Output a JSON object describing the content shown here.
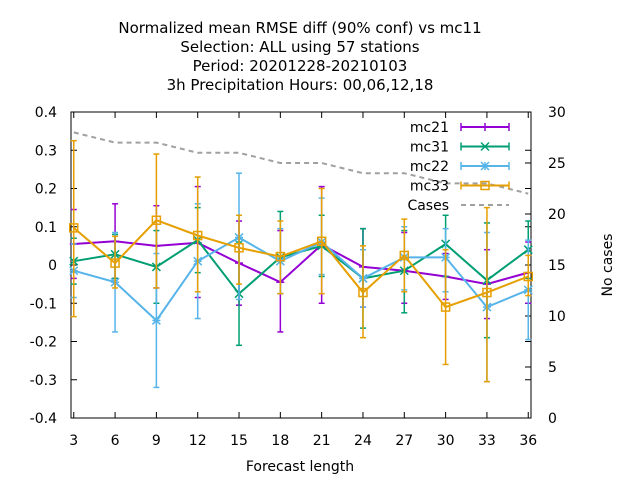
{
  "chart_data": {
    "type": "line",
    "title_lines": [
      "Normalized mean RMSE diff (90% conf) vs mc11",
      "Selection: ALL using    57 stations",
      "Period: 20201228-20210103",
      "3h Precipitation   Hours:  00,06,12,18"
    ],
    "xlabel": "Forecast length",
    "y2label": "No cases",
    "x": [
      3,
      6,
      9,
      12,
      15,
      18,
      21,
      24,
      27,
      30,
      33,
      36
    ],
    "xlim": [
      2.8,
      36.2
    ],
    "ylim": [
      -0.4,
      0.4
    ],
    "y2lim": [
      0,
      30
    ],
    "yticks": [
      "0.4",
      "0.3",
      "0.2",
      "0.1",
      "0",
      "-0.1",
      "-0.2",
      "-0.3",
      "-0.4"
    ],
    "y2ticks": [
      "30",
      "25",
      "20",
      "15",
      "10",
      "5",
      "0"
    ],
    "xticks": [
      "3",
      "6",
      "9",
      "12",
      "15",
      "18",
      "21",
      "24",
      "27",
      "30",
      "33",
      "36"
    ],
    "series": [
      {
        "name": "mc21",
        "color": "#9400d3",
        "marker": "plus",
        "axis": "y",
        "values": [
          0.055,
          0.062,
          0.05,
          0.058,
          0.005,
          -0.045,
          0.053,
          -0.005,
          -0.015,
          -0.03,
          -0.05,
          -0.02
        ],
        "lower": [
          -0.035,
          -0.035,
          -0.06,
          -0.085,
          -0.105,
          -0.175,
          -0.1,
          -0.11,
          -0.1,
          -0.09,
          -0.14,
          -0.1
        ],
        "upper": [
          0.145,
          0.16,
          0.155,
          0.205,
          0.115,
          0.09,
          0.205,
          0.095,
          0.085,
          0.03,
          0.04,
          0.06
        ]
      },
      {
        "name": "mc31",
        "color": "#009e73",
        "marker": "cross",
        "axis": "y",
        "values": [
          0.01,
          0.028,
          -0.005,
          0.065,
          -0.075,
          0.02,
          0.05,
          -0.035,
          -0.015,
          0.055,
          -0.04,
          0.04
        ],
        "lower": [
          -0.05,
          -0.035,
          -0.1,
          -0.02,
          -0.21,
          -0.075,
          -0.03,
          -0.165,
          -0.125,
          -0.03,
          -0.19,
          -0.035
        ],
        "upper": [
          0.07,
          0.08,
          0.09,
          0.15,
          0.06,
          0.14,
          0.13,
          0.095,
          0.09,
          0.13,
          0.11,
          0.115
        ]
      },
      {
        "name": "mc22",
        "color": "#56b4e9",
        "marker": "star",
        "axis": "y",
        "values": [
          -0.015,
          -0.045,
          -0.145,
          0.01,
          0.072,
          0.01,
          0.06,
          -0.035,
          0.02,
          0.02,
          -0.11,
          -0.065
        ],
        "lower": [
          -0.085,
          -0.175,
          -0.32,
          -0.14,
          -0.09,
          -0.075,
          -0.025,
          -0.11,
          -0.065,
          -0.07,
          -0.305,
          -0.195
        ],
        "upper": [
          0.055,
          0.085,
          0.03,
          0.16,
          0.24,
          0.095,
          0.175,
          0.04,
          0.1,
          0.095,
          0.085,
          0.065
        ]
      },
      {
        "name": "mc33",
        "color": "#e69f00",
        "marker": "square",
        "axis": "y",
        "values": [
          0.097,
          0.005,
          0.117,
          0.077,
          0.045,
          0.022,
          0.062,
          -0.072,
          0.025,
          -0.11,
          -0.072,
          -0.03
        ],
        "lower": [
          -0.135,
          -0.06,
          -0.06,
          -0.07,
          -0.05,
          -0.075,
          -0.075,
          -0.19,
          -0.07,
          -0.26,
          -0.305,
          -0.08
        ],
        "upper": [
          0.325,
          0.075,
          0.29,
          0.23,
          0.13,
          0.115,
          0.2,
          0.05,
          0.12,
          0.04,
          0.15,
          0.025
        ]
      },
      {
        "name": "Cases",
        "color": "#a0a0a0",
        "marker": "none",
        "axis": "y2",
        "dashed": true,
        "values": [
          28,
          27,
          27,
          26,
          26,
          25,
          25,
          24,
          24,
          23,
          23,
          22
        ]
      }
    ],
    "legend_position": "top-right",
    "grid": false
  }
}
